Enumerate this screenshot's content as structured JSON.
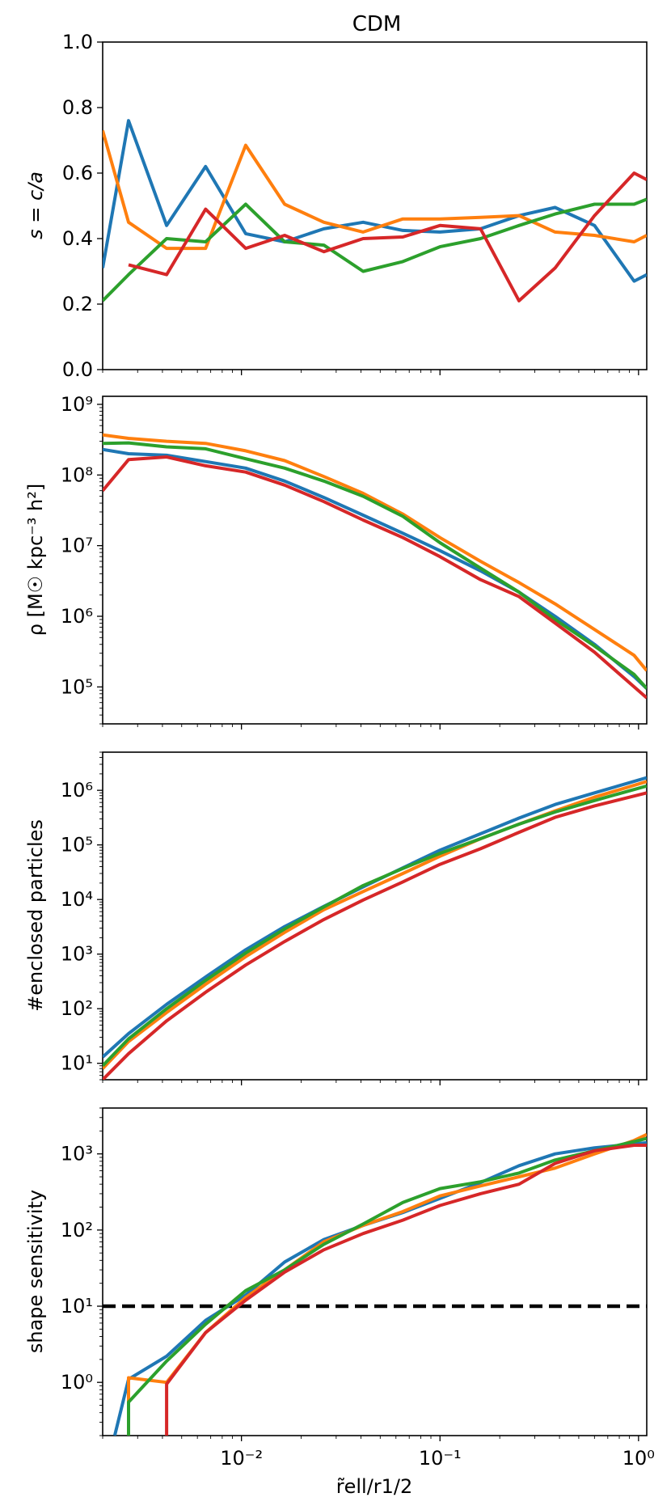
{
  "figure_title": "CDM",
  "xlabel": "r̃ell/r1/2",
  "chart_data": [
    {
      "type": "line",
      "title": "CDM",
      "ylabel": "s = c/a",
      "yscale": "linear",
      "xscale": "log",
      "xlim": [
        0.002,
        1.1
      ],
      "ylim": [
        0,
        1.0
      ],
      "yticks": [
        0,
        0.2,
        0.4,
        0.6,
        0.8,
        1.0
      ],
      "ytick_labels": [
        "0.0",
        "0.2",
        "0.4",
        "0.6",
        "0.8",
        "1.0"
      ],
      "grid": false,
      "series": [
        {
          "color": "#1f77b4",
          "x": [
            0.002,
            0.0027,
            0.0042,
            0.0066,
            0.0105,
            0.0165,
            0.026,
            0.041,
            0.065,
            0.1,
            0.16,
            0.25,
            0.38,
            0.6,
            0.95,
            1.1
          ],
          "y": [
            0.31,
            0.76,
            0.44,
            0.62,
            0.415,
            0.39,
            0.43,
            0.45,
            0.425,
            0.42,
            0.43,
            0.47,
            0.495,
            0.44,
            0.27,
            0.29
          ]
        },
        {
          "color": "#ff7f0e",
          "x": [
            0.002,
            0.0027,
            0.0042,
            0.0066,
            0.0105,
            0.0165,
            0.026,
            0.041,
            0.065,
            0.1,
            0.16,
            0.25,
            0.38,
            0.6,
            0.95,
            1.1
          ],
          "y": [
            0.73,
            0.45,
            0.37,
            0.37,
            0.685,
            0.505,
            0.45,
            0.42,
            0.46,
            0.46,
            0.465,
            0.47,
            0.42,
            0.41,
            0.39,
            0.41
          ]
        },
        {
          "color": "#2ca02c",
          "x": [
            0.002,
            0.0027,
            0.0042,
            0.0066,
            0.0105,
            0.0165,
            0.026,
            0.041,
            0.065,
            0.1,
            0.16,
            0.25,
            0.38,
            0.6,
            0.95,
            1.1
          ],
          "y": [
            0.21,
            0.29,
            0.4,
            0.39,
            0.505,
            0.39,
            0.38,
            0.3,
            0.33,
            0.375,
            0.4,
            0.44,
            0.475,
            0.505,
            0.505,
            0.52
          ]
        },
        {
          "color": "#d62728",
          "x": [
            0.0027,
            0.0042,
            0.0066,
            0.0105,
            0.0165,
            0.026,
            0.041,
            0.065,
            0.1,
            0.16,
            0.25,
            0.38,
            0.6,
            0.95,
            1.1
          ],
          "y": [
            0.32,
            0.29,
            0.49,
            0.37,
            0.41,
            0.36,
            0.4,
            0.405,
            0.44,
            0.43,
            0.21,
            0.31,
            0.47,
            0.6,
            0.58
          ]
        }
      ]
    },
    {
      "type": "line",
      "ylabel": "ρ [M☉ kpc⁻³ h²]",
      "yscale": "log",
      "xscale": "log",
      "xlim": [
        0.002,
        1.1
      ],
      "ylim": [
        30000,
        1300000000
      ],
      "ytick_exponents": [
        5,
        6,
        7,
        8,
        9
      ],
      "grid": false,
      "series": [
        {
          "color": "#1f77b4",
          "x": [
            0.002,
            0.0027,
            0.0042,
            0.0066,
            0.0105,
            0.0165,
            0.026,
            0.041,
            0.065,
            0.1,
            0.16,
            0.25,
            0.38,
            0.6,
            0.95,
            1.1
          ],
          "y": [
            230000000,
            200000000,
            190000000,
            155000000,
            125000000,
            82000000,
            48000000,
            27000000,
            15000000,
            8500000,
            4400000,
            2200000,
            1000000,
            400000,
            140000,
            95000
          ]
        },
        {
          "color": "#ff7f0e",
          "x": [
            0.002,
            0.0027,
            0.0042,
            0.0066,
            0.0105,
            0.0165,
            0.026,
            0.041,
            0.065,
            0.1,
            0.16,
            0.25,
            0.38,
            0.6,
            0.95,
            1.1
          ],
          "y": [
            370000000,
            330000000,
            300000000,
            280000000,
            220000000,
            160000000,
            95000000,
            55000000,
            28000000,
            13000000,
            6000000,
            3000000,
            1500000,
            650000,
            280000,
            170000
          ]
        },
        {
          "color": "#2ca02c",
          "x": [
            0.002,
            0.0027,
            0.0042,
            0.0066,
            0.0105,
            0.0165,
            0.026,
            0.041,
            0.065,
            0.1,
            0.16,
            0.25,
            0.38,
            0.6,
            0.95,
            1.1
          ],
          "y": [
            280000000,
            285000000,
            250000000,
            235000000,
            170000000,
            125000000,
            82000000,
            50000000,
            26000000,
            11000000,
            4800000,
            2200000,
            900000,
            380000,
            150000,
            95000
          ]
        },
        {
          "color": "#d62728",
          "x": [
            0.002,
            0.0027,
            0.0042,
            0.0066,
            0.0105,
            0.0165,
            0.026,
            0.041,
            0.065,
            0.1,
            0.16,
            0.25,
            0.38,
            0.6,
            0.95,
            1.1
          ],
          "y": [
            60000000,
            165000000,
            180000000,
            135000000,
            110000000,
            72000000,
            42000000,
            23000000,
            13000000,
            7000000,
            3300000,
            1900000,
            800000,
            310000,
            100000,
            70000
          ]
        }
      ]
    },
    {
      "type": "line",
      "ylabel": "#enclosed particles",
      "yscale": "log",
      "xscale": "log",
      "xlim": [
        0.002,
        1.1
      ],
      "ylim": [
        5,
        5000000
      ],
      "ytick_exponents": [
        1,
        2,
        3,
        4,
        5,
        6
      ],
      "grid": false,
      "series": [
        {
          "color": "#1f77b4",
          "x": [
            0.002,
            0.0027,
            0.0042,
            0.0066,
            0.0105,
            0.0165,
            0.026,
            0.041,
            0.065,
            0.1,
            0.16,
            0.25,
            0.38,
            0.6,
            1.1
          ],
          "y": [
            13,
            35,
            120,
            380,
            1200,
            3200,
            7500,
            17000,
            38000,
            80000,
            160000,
            310000,
            550000,
            900000,
            1700000
          ]
        },
        {
          "color": "#ff7f0e",
          "x": [
            0.002,
            0.0027,
            0.0042,
            0.0066,
            0.0105,
            0.0165,
            0.026,
            0.041,
            0.065,
            0.1,
            0.16,
            0.25,
            0.38,
            0.6,
            1.1
          ],
          "y": [
            8,
            25,
            85,
            280,
            900,
            2500,
            6500,
            14000,
            30000,
            62000,
            130000,
            240000,
            420000,
            750000,
            1450000
          ]
        },
        {
          "color": "#2ca02c",
          "x": [
            0.002,
            0.0027,
            0.0042,
            0.0066,
            0.0105,
            0.0165,
            0.026,
            0.041,
            0.065,
            0.1,
            0.16,
            0.25,
            0.38,
            0.6,
            1.1
          ],
          "y": [
            9,
            28,
            100,
            330,
            1050,
            2900,
            7300,
            18000,
            37000,
            70000,
            130000,
            240000,
            400000,
            650000,
            1200000
          ]
        },
        {
          "color": "#d62728",
          "x": [
            0.002,
            0.0027,
            0.0042,
            0.0066,
            0.0105,
            0.0165,
            0.026,
            0.041,
            0.065,
            0.1,
            0.16,
            0.25,
            0.38,
            0.6,
            1.1
          ],
          "y": [
            5,
            15,
            60,
            200,
            630,
            1700,
            4300,
            9800,
            21000,
            44000,
            85000,
            170000,
            320000,
            520000,
            900000
          ]
        }
      ]
    },
    {
      "type": "line",
      "ylabel": "shape sensitivity",
      "yscale": "log",
      "xscale": "log",
      "xlim": [
        0.002,
        1.1
      ],
      "ylim": [
        0.2,
        4000
      ],
      "ytick_exponents": [
        0,
        1,
        2,
        3
      ],
      "xtick_exponents": [
        -2,
        -1,
        0
      ],
      "hline": {
        "y": 10,
        "color": "#000000",
        "style": "dashed"
      },
      "grid": false,
      "series": [
        {
          "color": "#1f77b4",
          "x": [
            0.0023,
            0.0027,
            0.0042,
            0.0066,
            0.0105,
            0.0165,
            0.026,
            0.041,
            0.065,
            0.1,
            0.16,
            0.25,
            0.38,
            0.6,
            0.95,
            1.1
          ],
          "y": [
            0.2,
            1.1,
            2.2,
            6.5,
            14,
            38,
            75,
            115,
            170,
            260,
            420,
            700,
            1000,
            1200,
            1350,
            1400
          ]
        },
        {
          "color": "#ff7f0e",
          "x": [
            0.0027,
            0.0027,
            0.0042,
            0.0042,
            0.0066,
            0.0105,
            0.0165,
            0.026,
            0.041,
            0.065,
            0.1,
            0.16,
            0.25,
            0.38,
            0.6,
            0.95,
            1.1
          ],
          "y": [
            0.2,
            1.15,
            1.0,
            1.0,
            4.5,
            13,
            30,
            70,
            115,
            175,
            280,
            380,
            500,
            650,
            1000,
            1500,
            1800
          ]
        },
        {
          "color": "#2ca02c",
          "x": [
            0.0027,
            0.0027,
            0.0042,
            0.0066,
            0.0105,
            0.0165,
            0.026,
            0.041,
            0.065,
            0.1,
            0.16,
            0.25,
            0.38,
            0.6,
            0.95,
            1.1
          ],
          "y": [
            0.2,
            0.55,
            1.9,
            5.8,
            16,
            30,
            65,
            120,
            230,
            350,
            430,
            560,
            830,
            1100,
            1450,
            1600
          ]
        },
        {
          "color": "#d62728",
          "x": [
            0.0042,
            0.0042,
            0.0066,
            0.0105,
            0.0165,
            0.026,
            0.041,
            0.065,
            0.1,
            0.16,
            0.25,
            0.38,
            0.6,
            0.95,
            1.1
          ],
          "y": [
            0.2,
            0.95,
            4.5,
            12,
            28,
            55,
            90,
            135,
            210,
            300,
            400,
            750,
            1100,
            1300,
            1300
          ]
        }
      ]
    }
  ]
}
